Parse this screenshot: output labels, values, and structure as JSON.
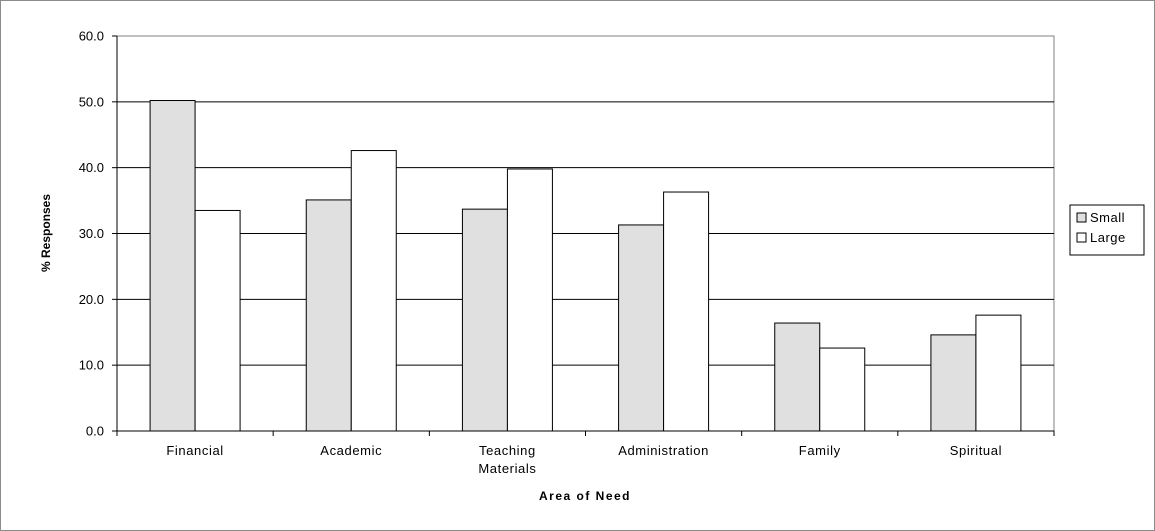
{
  "chart_data": {
    "type": "bar",
    "title": "",
    "xlabel": "Area of Need",
    "ylabel": "% Responses",
    "categories": [
      "Financial",
      "Academic",
      "Teaching Materials",
      "Administration",
      "Family",
      "Spiritual"
    ],
    "series": [
      {
        "name": "Small",
        "values": [
          50.2,
          35.1,
          33.7,
          31.3,
          16.4,
          14.6
        ],
        "color": "#e0e0e0"
      },
      {
        "name": "Large",
        "values": [
          33.5,
          42.6,
          39.8,
          36.3,
          12.6,
          17.6
        ],
        "color": "#ffffff"
      }
    ],
    "ylim": [
      0,
      60
    ],
    "yticks": [
      "0.0",
      "10.0",
      "20.0",
      "30.0",
      "40.0",
      "50.0",
      "60.0"
    ],
    "grid": true,
    "legend_position": "right"
  }
}
